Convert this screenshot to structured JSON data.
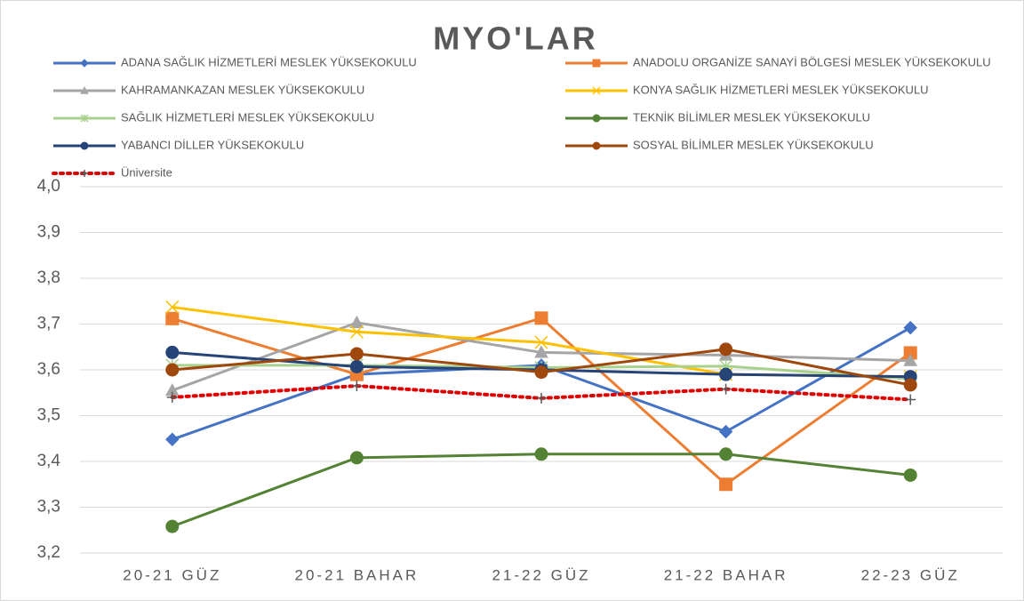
{
  "chart_data": {
    "type": "line",
    "title": "MYO'LAR",
    "categories": [
      "20-21 GÜZ",
      "20-21 BAHAR",
      "21-22 GÜZ",
      "21-22 BAHAR",
      "22-23 GÜZ"
    ],
    "ylim": [
      3.2,
      4.0
    ],
    "yticks": [
      {
        "value": 3.2,
        "label": "3,2"
      },
      {
        "value": 3.3,
        "label": "3,3"
      },
      {
        "value": 3.4,
        "label": "3,4"
      },
      {
        "value": 3.5,
        "label": "3,5"
      },
      {
        "value": 3.6,
        "label": "3,6"
      },
      {
        "value": 3.7,
        "label": "3,7"
      },
      {
        "value": 3.8,
        "label": "3,8"
      },
      {
        "value": 3.9,
        "label": "3,9"
      },
      {
        "value": 4.0,
        "label": "4,0"
      }
    ],
    "grid": true,
    "series": [
      {
        "name": "ADANA SAĞLIK HİZMETLERİ MESLEK YÜKSEKOKULU",
        "color": "#4472c4",
        "marker": "diamond",
        "values": [
          3.448,
          3.59,
          3.61,
          3.465,
          3.692
        ]
      },
      {
        "name": "ANADOLU ORGANİZE SANAYİ BÖLGESİ MESLEK YÜKSEKOKULU",
        "color": "#ed7d31",
        "marker": "square",
        "values": [
          3.712,
          3.59,
          3.713,
          3.35,
          3.637
        ]
      },
      {
        "name": "KAHRAMANKAZAN MESLEK YÜKSEKOKULU",
        "color": "#a5a5a5",
        "marker": "triangle",
        "values": [
          3.555,
          3.703,
          3.638,
          3.632,
          3.62
        ]
      },
      {
        "name": "KONYA SAĞLIK HİZMETLERİ MESLEK YÜKSEKOKULU",
        "color": "#ffc000",
        "marker": "x",
        "values": [
          3.737,
          3.683,
          3.66,
          3.59,
          3.585
        ]
      },
      {
        "name": "SAĞLIK HİZMETLERİ MESLEK YÜKSEKOKULU",
        "color": "#a9d18e",
        "marker": "star",
        "values": [
          3.61,
          3.61,
          3.605,
          3.608,
          3.58
        ]
      },
      {
        "name": "TEKNİK BİLİMLER MESLEK YÜKSEKOKULU",
        "color": "#548235",
        "marker": "circle",
        "values": [
          3.258,
          3.408,
          3.416,
          3.416,
          3.37
        ]
      },
      {
        "name": "YABANCI DİLLER YÜKSEKOKULU",
        "color": "#264478",
        "marker": "circle",
        "values": [
          3.638,
          3.607,
          3.6,
          3.59,
          3.585
        ]
      },
      {
        "name": "SOSYAL BİLİMLER MESLEK YÜKSEKOKULU",
        "color": "#9e480e",
        "marker": "circle",
        "values": [
          3.6,
          3.635,
          3.595,
          3.645,
          3.567
        ]
      },
      {
        "name": "Üniversite",
        "color": "#e00000",
        "marker": "plus",
        "dash": "dotted",
        "values": [
          3.54,
          3.565,
          3.538,
          3.558,
          3.535
        ]
      }
    ]
  }
}
